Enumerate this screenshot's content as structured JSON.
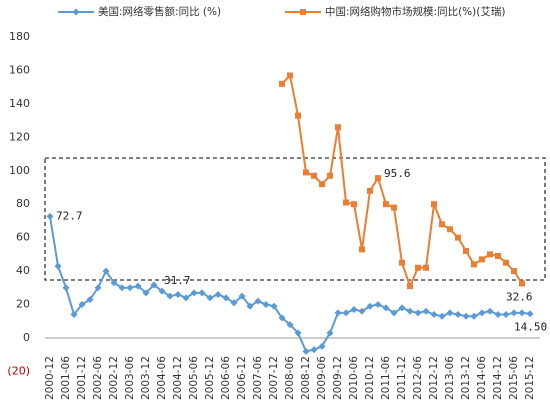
{
  "chart_data": {
    "type": "line",
    "categories": [
      "2000-12",
      null,
      "2001-06",
      null,
      "2001-12",
      null,
      "2002-06",
      null,
      "2002-12",
      null,
      "2003-06",
      null,
      "2003-12",
      null,
      "2004-06",
      null,
      "2004-12",
      null,
      "2005-06",
      null,
      "2005-12",
      null,
      "2006-06",
      null,
      "2006-12",
      null,
      "2007-06",
      null,
      "2007-12",
      null,
      "2008-06",
      null,
      "2008-12",
      null,
      "2009-06",
      null,
      "2009-12",
      null,
      "2010-06",
      null,
      "2010-12",
      null,
      "2011-06",
      null,
      "2011-12",
      null,
      "2012-06",
      null,
      "2012-12",
      null,
      "2013-06",
      null,
      "2013-12",
      null,
      "2014-06",
      null,
      "2014-12",
      null,
      "2015-06",
      null,
      "2015-12"
    ],
    "series": [
      {
        "name": "美国:网络零售额:同比 (%)",
        "color": "#5b9bd5",
        "values": [
          72.7,
          43,
          30,
          14,
          20,
          23,
          30,
          40,
          33,
          30,
          30,
          31,
          27,
          31.7,
          28,
          25,
          26,
          24,
          27,
          27,
          24,
          26,
          24,
          21,
          25,
          19,
          22,
          20,
          19,
          12,
          8,
          3,
          -8,
          -7,
          -5,
          3,
          15,
          15,
          17,
          16,
          19,
          20,
          18,
          15,
          18,
          16,
          15,
          16,
          14,
          13,
          15,
          14,
          13,
          13,
          15,
          16,
          14,
          14,
          15,
          15,
          14.5
        ],
        "value_labels": [
          "72.7",
          null,
          null,
          null,
          null,
          null,
          null,
          null,
          null,
          null,
          null,
          null,
          null,
          "31.7",
          null,
          null,
          null,
          null,
          null,
          null,
          null,
          null,
          null,
          null,
          null,
          null,
          null,
          null,
          null,
          null,
          null,
          null,
          null,
          null,
          null,
          null,
          null,
          null,
          null,
          null,
          null,
          null,
          null,
          null,
          null,
          null,
          null,
          null,
          null,
          null,
          null,
          null,
          null,
          null,
          null,
          null,
          null,
          null,
          null,
          null,
          "14.50"
        ]
      },
      {
        "name": "中国:网络购物市场规模:同比(%)(艾瑞)",
        "color": "#ed7d31",
        "values": [
          null,
          null,
          null,
          null,
          null,
          null,
          null,
          null,
          null,
          null,
          null,
          null,
          null,
          null,
          null,
          null,
          null,
          null,
          null,
          null,
          null,
          null,
          null,
          null,
          null,
          null,
          null,
          null,
          null,
          152,
          157,
          133,
          99,
          97,
          92,
          97,
          126,
          81,
          80,
          53,
          88,
          95.6,
          80,
          78,
          45,
          31,
          42,
          42,
          80,
          68,
          65,
          60,
          52,
          44,
          47,
          50,
          49,
          45,
          40,
          32.6,
          null
        ],
        "value_labels": [
          null,
          null,
          null,
          null,
          null,
          null,
          null,
          null,
          null,
          null,
          null,
          null,
          null,
          null,
          null,
          null,
          null,
          null,
          null,
          null,
          null,
          null,
          null,
          null,
          null,
          null,
          null,
          null,
          null,
          null,
          null,
          null,
          null,
          null,
          null,
          null,
          null,
          null,
          null,
          null,
          null,
          "95.6",
          null,
          null,
          null,
          null,
          null,
          null,
          null,
          null,
          null,
          null,
          null,
          null,
          null,
          null,
          null,
          null,
          null,
          "32.6",
          null
        ]
      }
    ],
    "ylim": [
      -20,
      180
    ],
    "yticks": [
      {
        "value": -20,
        "label": "(20)"
      },
      0,
      20,
      40,
      60,
      80,
      100,
      120,
      140,
      160,
      180
    ],
    "grid": false
  }
}
